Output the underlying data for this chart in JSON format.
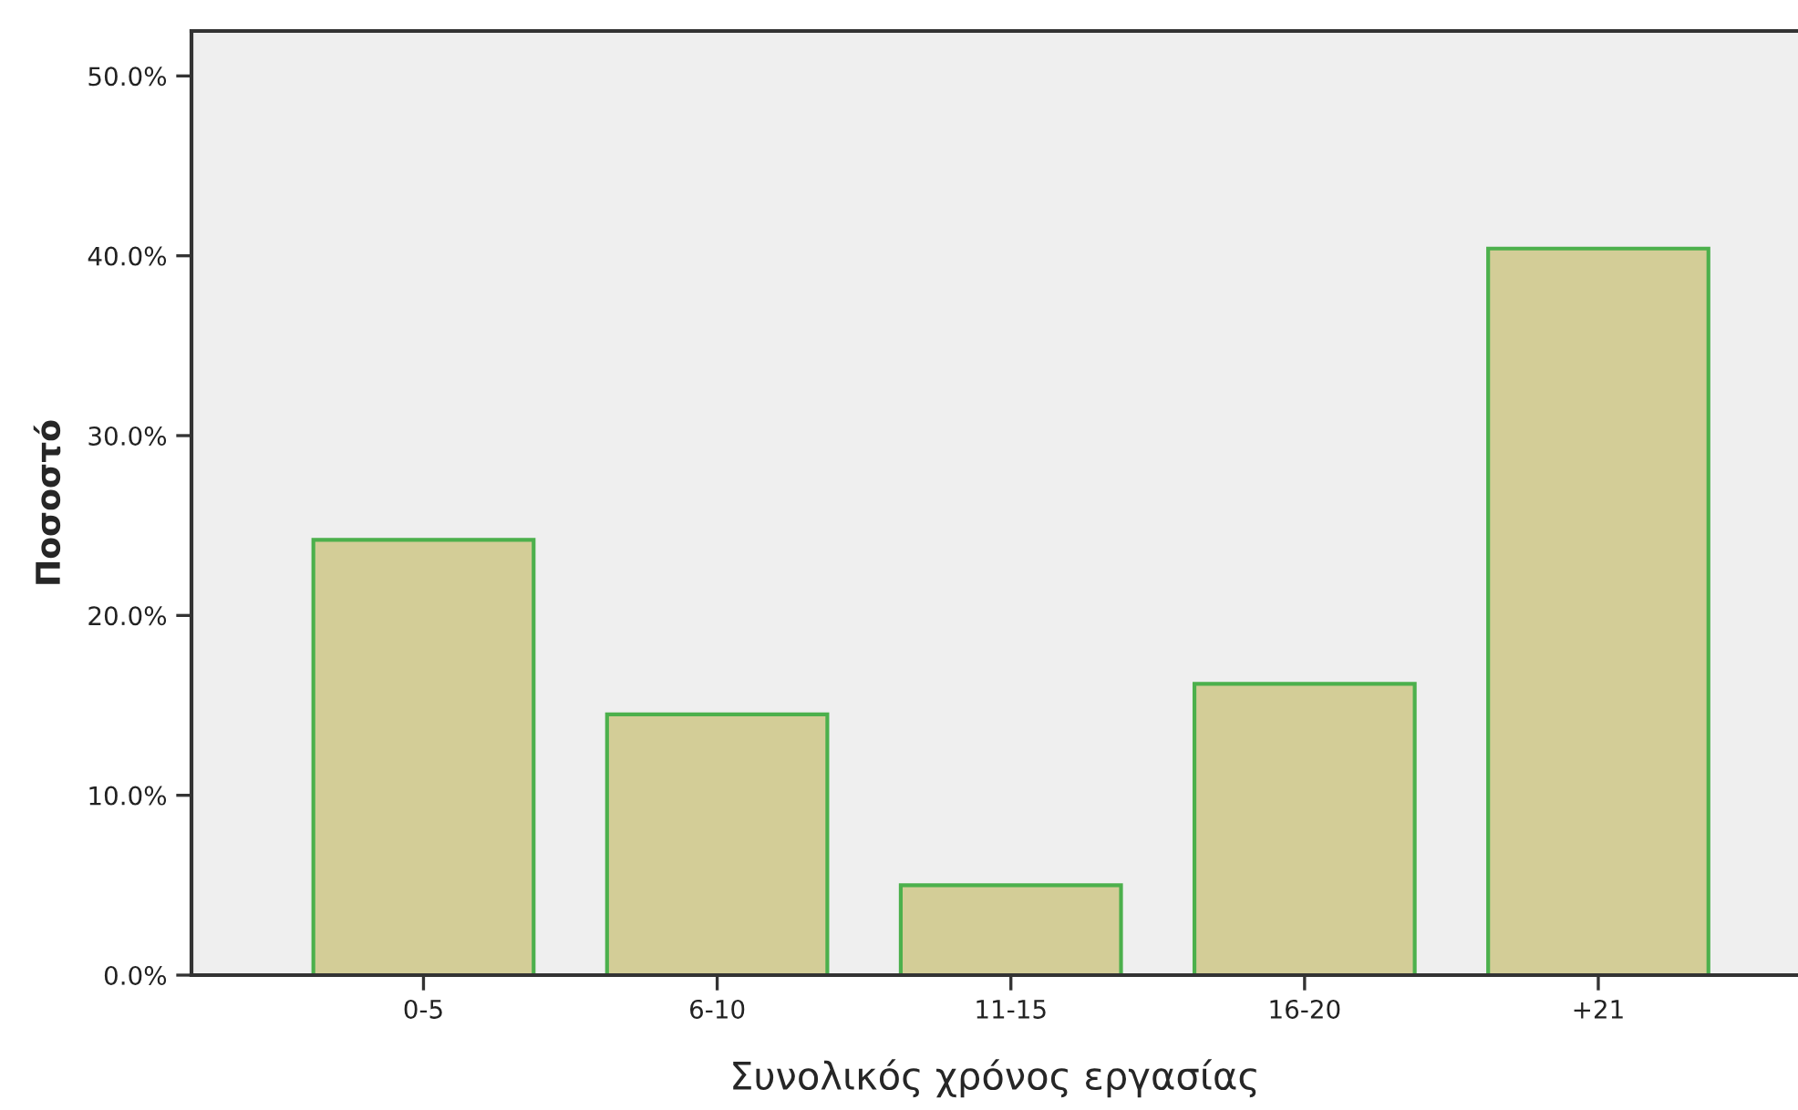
{
  "chart_data": {
    "type": "bar",
    "xlabel": "Συνολικός χρόνος εργασίας",
    "ylabel": "Ποσοστό",
    "categories": [
      "0-5",
      "6-10",
      "11-15",
      "16-20",
      "+21"
    ],
    "values": [
      24.2,
      14.5,
      5.0,
      16.2,
      40.4
    ],
    "color": "#d3cd97",
    "ylim": [
      0,
      52.5
    ],
    "yticks": [
      {
        "value": 0,
        "label": "0.0%"
      },
      {
        "value": 10,
        "label": "10.0%"
      },
      {
        "value": 20,
        "label": "20.0%"
      },
      {
        "value": 30,
        "label": "30.0%"
      },
      {
        "value": 40,
        "label": "40.0%"
      },
      {
        "value": 50,
        "label": "50.0%"
      }
    ],
    "grid": false,
    "legend": false
  }
}
